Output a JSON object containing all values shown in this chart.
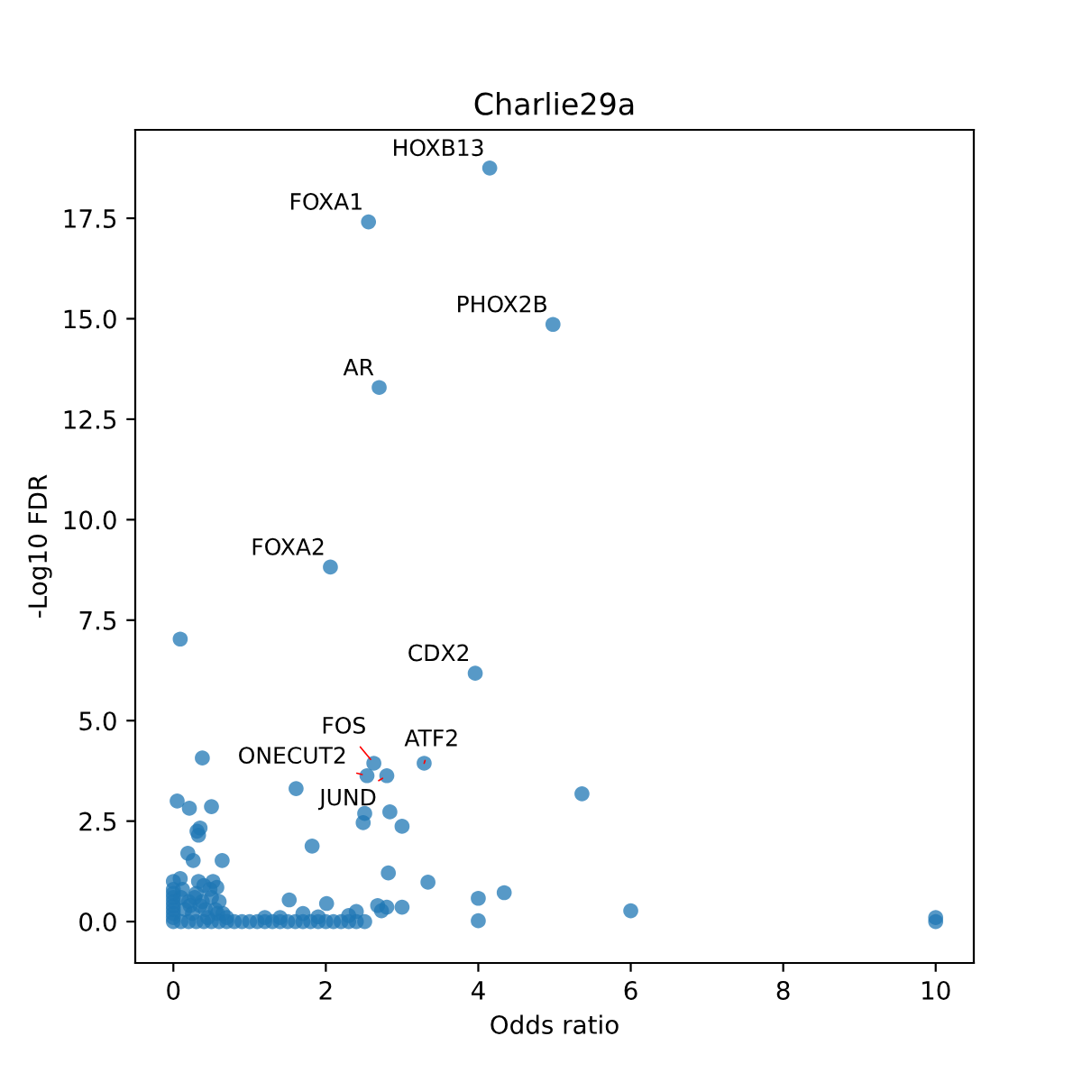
{
  "chart_data": {
    "type": "scatter",
    "title": "Charlie29a",
    "xlabel": "Odds ratio",
    "ylabel": "-Log10 FDR",
    "xlim": [
      -0.5,
      10.5
    ],
    "ylim": [
      -1.03,
      19.7
    ],
    "xticks": [
      0,
      2,
      4,
      6,
      8,
      10
    ],
    "yticks": [
      {
        "value": 0,
        "label": "0.0"
      },
      2.5,
      {
        "value": 5,
        "label": "5.0"
      },
      7.5,
      {
        "value": 10,
        "label": "10.0"
      },
      12.5,
      {
        "value": 15,
        "label": "15.0"
      },
      17.5
    ],
    "grid": false,
    "marker": "circle",
    "series": [
      {
        "color": "#1f77b4",
        "x": [
          4.15,
          2.56,
          4.98,
          2.7,
          2.06,
          3.96,
          2.63,
          3.29,
          2.54,
          2.8,
          0.09,
          0.38,
          0.05,
          0.21,
          0.5,
          1.61,
          5.36,
          2.51,
          2.49,
          2.84,
          3.0,
          0.35,
          0.33,
          0.31,
          0.19,
          0.26,
          0.64,
          1.82,
          2.82,
          3.34,
          4.0,
          4.34,
          4.0,
          6.0,
          10,
          10,
          1.52,
          2.01,
          2.68,
          2.8,
          2.73,
          3.0,
          2.51,
          0,
          0,
          0,
          0,
          0,
          0,
          0,
          0,
          0,
          0,
          0.09,
          0.33,
          0.52,
          0.57,
          0.1,
          0.15,
          0.2,
          0.25,
          0.3,
          0.35,
          0.4,
          0.45,
          0.5,
          0.55,
          0.6,
          0.65,
          0.7,
          0.12,
          0.22,
          0.28,
          0.38,
          0.42,
          0.48,
          0.58,
          0.1,
          0.2,
          0.3,
          0.4,
          0.5,
          0.6,
          0.7,
          0.8,
          0.9,
          1.0,
          1.1,
          1.2,
          1.3,
          1.4,
          1.5,
          1.6,
          1.7,
          1.8,
          1.9,
          2.0,
          2.1,
          2.2,
          2.3,
          2.4,
          1.4,
          1.7,
          2.3,
          2.4,
          1.2,
          1.9
        ],
        "values": [
          18.75,
          17.41,
          14.86,
          13.29,
          8.82,
          6.18,
          3.94,
          3.94,
          3.63,
          3.63,
          7.03,
          4.07,
          3.0,
          2.82,
          2.86,
          3.31,
          3.18,
          2.69,
          2.46,
          2.73,
          2.37,
          2.33,
          2.15,
          2.25,
          1.7,
          1.52,
          1.52,
          1.88,
          1.21,
          0.98,
          0.58,
          0.72,
          0.02,
          0.27,
          0.1,
          0.0,
          0.54,
          0.45,
          0.4,
          0.36,
          0.27,
          0.36,
          0.0,
          0.0,
          0.1,
          0.2,
          0.3,
          0.4,
          0.5,
          0.6,
          0.7,
          0.8,
          1.0,
          1.07,
          1.0,
          1.0,
          0.85,
          0.6,
          0.3,
          0.5,
          0.2,
          0.7,
          0.4,
          0.9,
          0.1,
          0.6,
          0.3,
          0.5,
          0.2,
          0.1,
          0.8,
          0.4,
          0.6,
          0.5,
          0.3,
          0.8,
          0.2,
          0.0,
          0.0,
          0.0,
          0.0,
          0.0,
          0.0,
          0.0,
          0.0,
          0.0,
          0.0,
          0.0,
          0.0,
          0.0,
          0.0,
          0.0,
          0.0,
          0.0,
          0.0,
          0.0,
          0.0,
          0.0,
          0.0,
          0.0,
          0.0,
          0.1,
          0.2,
          0.15,
          0.25,
          0.1,
          0.12
        ]
      }
    ],
    "annotations": [
      {
        "text": "HOXB13",
        "x": 4.15,
        "y": 18.75
      },
      {
        "text": "FOXA1",
        "x": 2.56,
        "y": 17.41
      },
      {
        "text": "PHOX2B",
        "x": 4.98,
        "y": 14.86
      },
      {
        "text": "AR",
        "x": 2.7,
        "y": 13.29
      },
      {
        "text": "FOXA2",
        "x": 2.06,
        "y": 8.82
      },
      {
        "text": "CDX2",
        "x": 3.96,
        "y": 6.18
      },
      {
        "text": "FOS",
        "x": 2.63,
        "y": 3.94
      },
      {
        "text": "ATF2",
        "x": 3.29,
        "y": 3.94
      },
      {
        "text": "ONECUT2",
        "x": 2.54,
        "y": 3.63
      },
      {
        "text": "JUND",
        "x": 2.8,
        "y": 3.63
      }
    ]
  }
}
